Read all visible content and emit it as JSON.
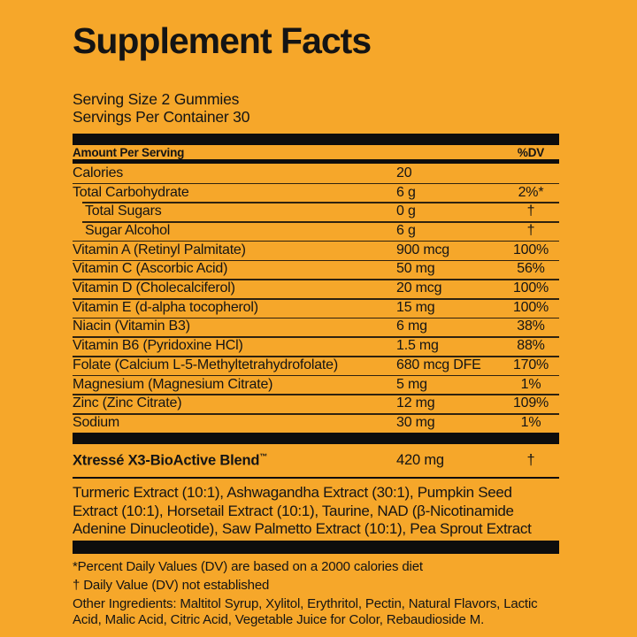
{
  "colors": {
    "background": "#F6A72A",
    "ink": "#141414",
    "bar": "#0D0D0D"
  },
  "header": {
    "title": "Supplement Facts",
    "serving_size": "Serving Size 2 Gummies",
    "servings_per_container": "Servings Per Container 30"
  },
  "table": {
    "amount_header": "Amount Per Serving",
    "dv_header": "%DV",
    "rows": [
      {
        "name": "Calories",
        "amount": "20",
        "dv": ""
      },
      {
        "name": "Total Carbohydrate",
        "amount": "6 g",
        "dv": "2%*"
      },
      {
        "name": "Total Sugars",
        "amount": "0 g",
        "dv": "†"
      },
      {
        "name": "Sugar Alcohol",
        "amount": "6 g",
        "dv": "†"
      },
      {
        "name": "Vitamin A (Retinyl Palmitate)",
        "amount": "900 mcg",
        "dv": "100%"
      },
      {
        "name": "Vitamin C (Ascorbic Acid)",
        "amount": "50 mg",
        "dv": "56%"
      },
      {
        "name": "Vitamin D (Cholecalciferol)",
        "amount": "20 mcg",
        "dv": "100%"
      },
      {
        "name": "Vitamin E (d-alpha tocopherol)",
        "amount": "15 mg",
        "dv": "100%"
      },
      {
        "name": "Niacin (Vitamin B3)",
        "amount": "6 mg",
        "dv": "38%"
      },
      {
        "name": "Vitamin B6 (Pyridoxine HCl)",
        "amount": "1.5 mg",
        "dv": "88%"
      },
      {
        "name": "Folate (Calcium L-5-Methyltetrahydrofolate)",
        "amount": "680 mcg DFE",
        "dv": "170%"
      },
      {
        "name": "Magnesium (Magnesium Citrate)",
        "amount": "5 mg",
        "dv": "1%"
      },
      {
        "name": "Zinc (Zinc Citrate)",
        "amount": "12 mg",
        "dv": "109%"
      },
      {
        "name": "Sodium",
        "amount": "30 mg",
        "dv": "1%"
      }
    ]
  },
  "blend": {
    "name": "Xtressé X3-BioActive Blend",
    "trademark": "™",
    "amount": "420 mg",
    "dv": "†",
    "ingredients": "Turmeric Extract (10:1), Ashwagandha Extract (30:1), Pumpkin Seed Extract (10:1), Horsetail Extract (10:1), Taurine, NAD (β-Nicotinamide Adenine Dinucleotide), Saw Palmetto Extract (10:1), Pea Sprout Extract"
  },
  "footnotes": {
    "percent_dv": "*Percent Daily Values (DV) are based on a 2000 calories diet",
    "dagger": "† Daily Value (DV) not established",
    "other_ingredients": "Other Ingredients: Maltitol Syrup, Xylitol, Erythritol, Pectin, Natural Flavors, Lactic Acid, Malic Acid, Citric Acid, Vegetable Juice for Color, Rebaudioside M."
  }
}
